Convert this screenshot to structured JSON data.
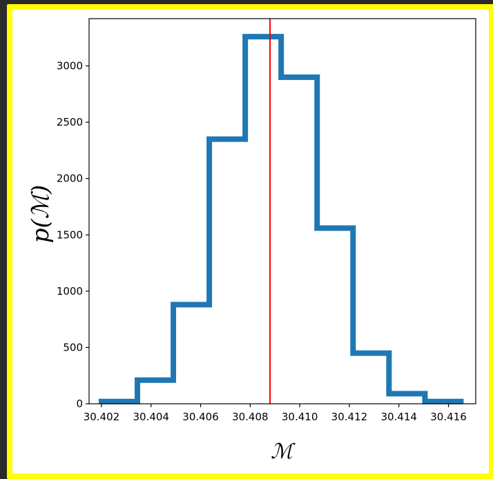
{
  "chart_data": {
    "type": "histogram",
    "xlabel": "ℳ",
    "ylabel": "p(ℳ)",
    "xlim": [
      30.4015,
      30.4171
    ],
    "ylim": [
      0,
      3420
    ],
    "x_ticks": [
      30.402,
      30.404,
      30.406,
      30.408,
      30.41,
      30.412,
      30.414,
      30.416
    ],
    "x_tick_labels": [
      "30.402",
      "30.404",
      "30.406",
      "30.408",
      "30.410",
      "30.412",
      "30.414",
      "30.416"
    ],
    "y_ticks": [
      0,
      500,
      1000,
      1500,
      2000,
      2500,
      3000
    ],
    "y_tick_labels": [
      "0",
      "500",
      "1000",
      "1500",
      "2000",
      "2500",
      "3000"
    ],
    "bin_edges": [
      30.402,
      30.40345,
      30.4049,
      30.40635,
      30.4078,
      30.40925,
      30.4107,
      30.41215,
      30.4136,
      30.41505,
      30.4165
    ],
    "values": [
      20,
      210,
      880,
      2350,
      3260,
      2900,
      1560,
      450,
      90,
      20
    ],
    "vline_x": 30.4088,
    "histogram_color": "#1f77b4",
    "vline_color": "#ff0000",
    "grid": false
  }
}
